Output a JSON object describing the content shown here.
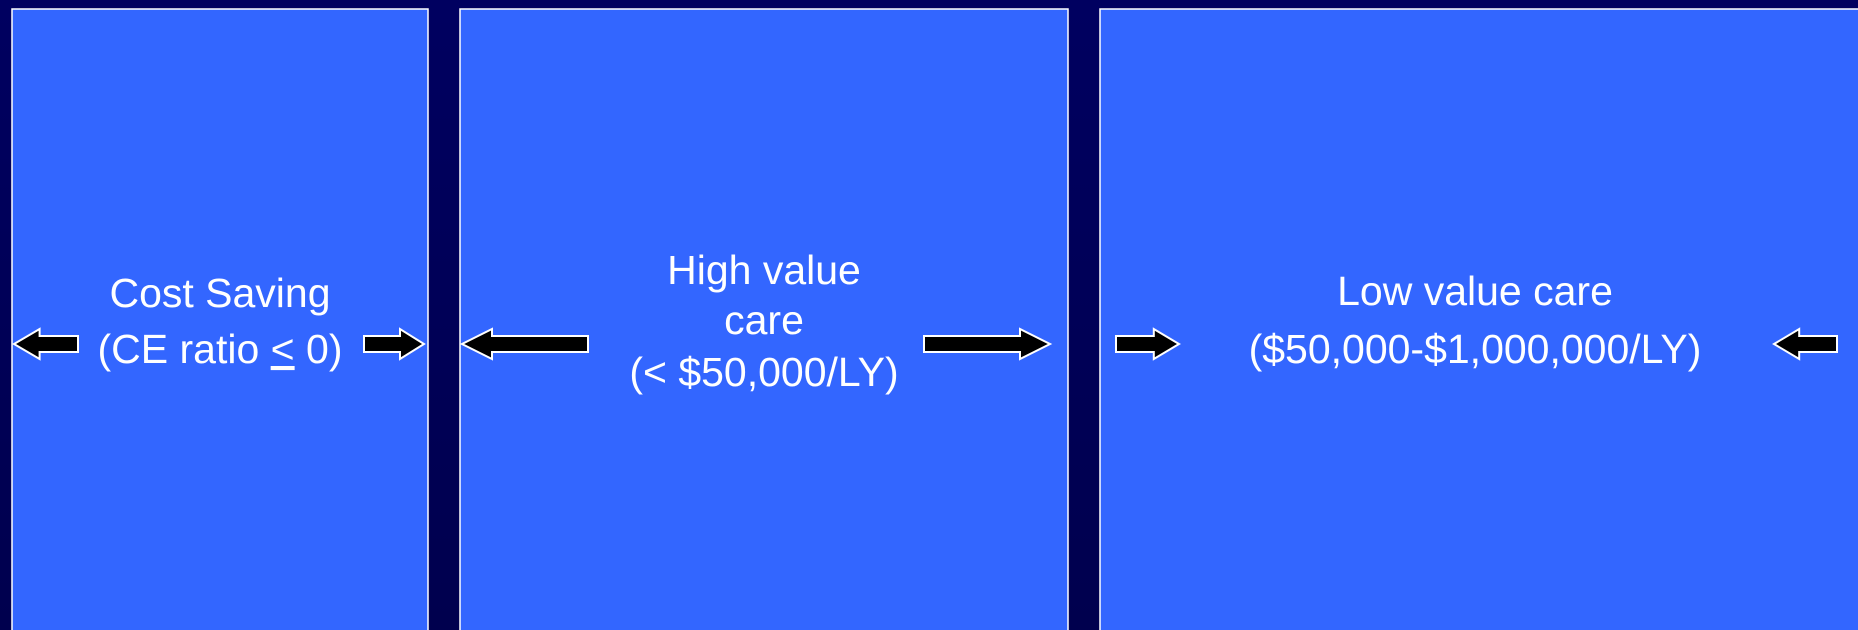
{
  "panels": [
    {
      "lines": [
        "Cost Saving"
      ],
      "ratio": {
        "before": "(CE ratio ",
        "underlined": "<",
        "after": " 0)"
      }
    },
    {
      "lines": [
        "High value",
        "care",
        "(< $50,000/LY)"
      ]
    },
    {
      "lines": [
        "Low value care",
        "($50,000-$1,000,000/LY)"
      ]
    }
  ]
}
